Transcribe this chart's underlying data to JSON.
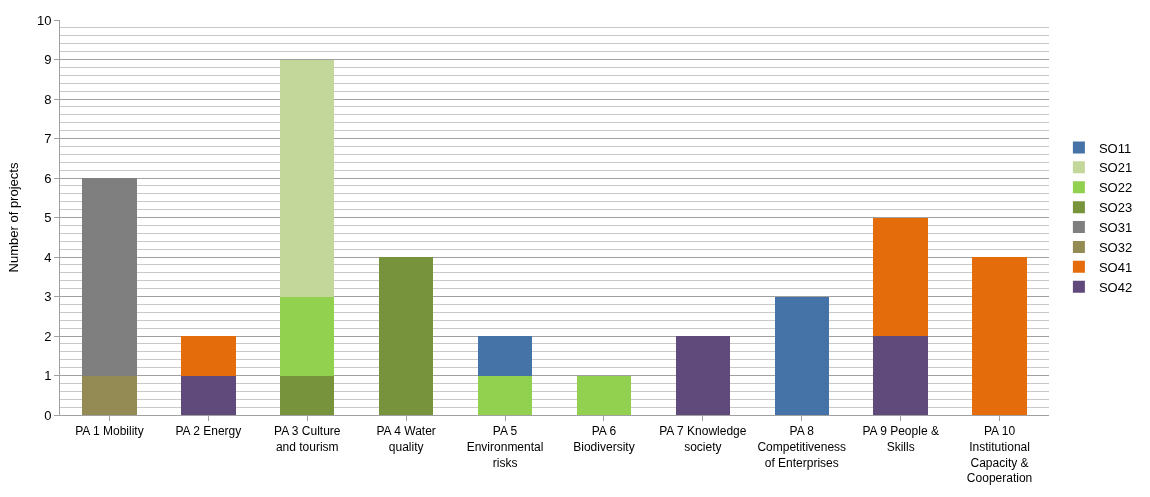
{
  "chart_data": {
    "type": "bar",
    "stacked": true,
    "ylabel": "Number of projects",
    "categories": [
      "PA 1 Mobility",
      "PA 2 Energy",
      "PA 3 Culture and tourism",
      "PA 4 Water quality",
      "PA 5 Environmental risks",
      "PA 6 Biodiversity",
      "PA 7 Knowledge society",
      "PA 8 Competitiveness of Enterprises",
      "PA 9 People & Skills",
      "PA 10 Institutional Capacity & Cooperation"
    ],
    "series": [
      {
        "name": "SO42",
        "color": "#604a7b",
        "values": [
          null,
          1,
          null,
          null,
          null,
          null,
          2,
          null,
          2,
          null
        ]
      },
      {
        "name": "SO41",
        "color": "#e46c0a",
        "values": [
          null,
          1,
          null,
          null,
          null,
          null,
          null,
          null,
          3,
          4
        ]
      },
      {
        "name": "SO32",
        "color": "#948a54",
        "values": [
          1,
          null,
          null,
          null,
          null,
          null,
          null,
          null,
          null,
          null
        ]
      },
      {
        "name": "SO31",
        "color": "#7f7f7f",
        "values": [
          5,
          null,
          null,
          null,
          null,
          null,
          null,
          null,
          null,
          null
        ]
      },
      {
        "name": "SO23",
        "color": "#77933c",
        "values": [
          null,
          null,
          1,
          4,
          null,
          null,
          null,
          null,
          null,
          null
        ]
      },
      {
        "name": "SO22",
        "color": "#92d050",
        "values": [
          null,
          null,
          2,
          null,
          1,
          1,
          null,
          null,
          null,
          null
        ]
      },
      {
        "name": "SO21",
        "color": "#c4d79b",
        "values": [
          null,
          null,
          6,
          null,
          null,
          null,
          null,
          null,
          null,
          null
        ]
      },
      {
        "name": "SO11",
        "color": "#4572a7",
        "values": [
          null,
          null,
          null,
          null,
          1,
          null,
          null,
          3,
          null,
          null
        ]
      }
    ],
    "ylim": [
      0,
      10
    ],
    "yticks": [
      0,
      1,
      2,
      3,
      4,
      5,
      6,
      7,
      8,
      9,
      10
    ],
    "grid": true,
    "legend": "right"
  }
}
